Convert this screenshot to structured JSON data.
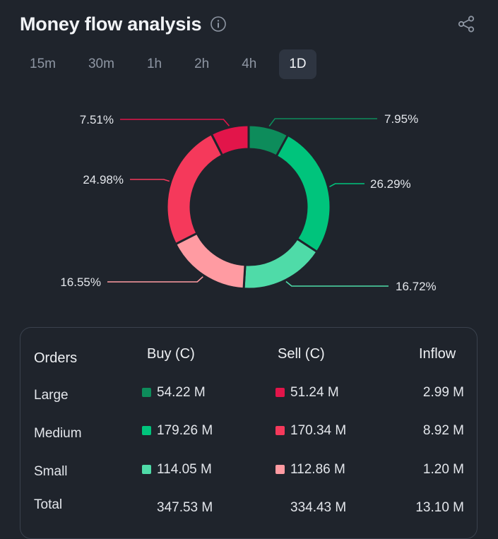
{
  "header": {
    "title": "Money flow analysis"
  },
  "tabs": [
    {
      "label": "15m"
    },
    {
      "label": "30m"
    },
    {
      "label": "1h"
    },
    {
      "label": "2h"
    },
    {
      "label": "4h"
    },
    {
      "label": "1D",
      "active": true
    }
  ],
  "colors": {
    "buy_large": "#0d8c5b",
    "buy_medium": "#00c47c",
    "buy_small": "#4fdba8",
    "sell_large": "#e2154a",
    "sell_medium": "#f5395b",
    "sell_small": "#ff9ba2"
  },
  "chart_data": {
    "type": "donut",
    "slices": [
      {
        "name": "Buy Large",
        "value": 7.95,
        "label": "7.95%",
        "color": "#0d8c5b"
      },
      {
        "name": "Buy Medium",
        "value": 26.29,
        "label": "26.29%",
        "color": "#00c47c"
      },
      {
        "name": "Buy Small",
        "value": 16.72,
        "label": "16.72%",
        "color": "#4fdba8"
      },
      {
        "name": "Sell Small",
        "value": 16.55,
        "label": "16.55%",
        "color": "#ff9ba2"
      },
      {
        "name": "Sell Medium",
        "value": 24.98,
        "label": "24.98%",
        "color": "#f5395b"
      },
      {
        "name": "Sell Large",
        "value": 7.51,
        "label": "7.51%",
        "color": "#e2154a"
      }
    ]
  },
  "table": {
    "headers": {
      "orders": "Orders",
      "buy": "Buy (C)",
      "sell": "Sell (C)",
      "inflow": "Inflow"
    },
    "rows": [
      {
        "label": "Large",
        "buy": "54.22 M",
        "sell": "51.24 M",
        "inflow": "2.99 M"
      },
      {
        "label": "Medium",
        "buy": "179.26 M",
        "sell": "170.34 M",
        "inflow": "8.92 M"
      },
      {
        "label": "Small",
        "buy": "114.05 M",
        "sell": "112.86 M",
        "inflow": "1.20 M"
      }
    ],
    "total": {
      "label": "Total",
      "buy": "347.53 M",
      "sell": "334.43 M",
      "inflow": "13.10 M"
    }
  }
}
